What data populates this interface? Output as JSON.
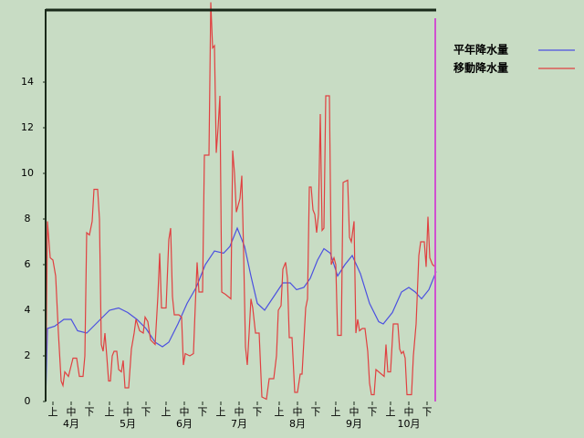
{
  "chart_data": {
    "type": "line",
    "xlim": [
      0,
      215
    ],
    "ylim": [
      0,
      17.2
    ],
    "yticks": [
      0,
      2,
      4,
      6,
      8,
      10,
      12,
      14
    ],
    "xticks": [
      {
        "value": 5,
        "label": "上"
      },
      {
        "value": 15,
        "label": "中"
      },
      {
        "value": 25,
        "label": "下"
      },
      {
        "value": 36,
        "label": "上"
      },
      {
        "value": 46,
        "label": "中"
      },
      {
        "value": 56,
        "label": "下"
      },
      {
        "value": 67,
        "label": "上"
      },
      {
        "value": 77,
        "label": "中"
      },
      {
        "value": 87,
        "label": "下"
      },
      {
        "value": 97,
        "label": "上"
      },
      {
        "value": 107,
        "label": "中"
      },
      {
        "value": 117,
        "label": "下"
      },
      {
        "value": 129,
        "label": "上"
      },
      {
        "value": 139,
        "label": "中"
      },
      {
        "value": 149,
        "label": "下"
      },
      {
        "value": 160,
        "label": "上"
      },
      {
        "value": 170,
        "label": "中"
      },
      {
        "value": 180,
        "label": "下"
      },
      {
        "value": 190,
        "label": "上"
      },
      {
        "value": 200,
        "label": "中"
      },
      {
        "value": 210,
        "label": "下"
      }
    ],
    "month_labels": [
      {
        "value": 15,
        "label": "4月"
      },
      {
        "value": 46,
        "label": "5月"
      },
      {
        "value": 77,
        "label": "6月"
      },
      {
        "value": 107,
        "label": "7月"
      },
      {
        "value": 139,
        "label": "8月"
      },
      {
        "value": 170,
        "label": "9月"
      },
      {
        "value": 200,
        "label": "10月"
      }
    ],
    "series": [
      {
        "name": "平年降水量",
        "color": "#4b50e0",
        "x": [
          1,
          2,
          6,
          11,
          15,
          18.5,
          23.5,
          28.5,
          36,
          41,
          46,
          51,
          56,
          61,
          65,
          68.5,
          73.5,
          78.5,
          83.5,
          88.5,
          93.5,
          98.5,
          102,
          106,
          110,
          113.5,
          117,
          121,
          126,
          131,
          135,
          138.5,
          142.5,
          146,
          150,
          153.5,
          157,
          161,
          165,
          169,
          173.5,
          178.5,
          183.5,
          186,
          191,
          196,
          200,
          203.5,
          207,
          211,
          215
        ],
        "values": [
          0,
          3.2,
          3.3,
          3.6,
          3.6,
          3.1,
          3.0,
          3.4,
          4.0,
          4.1,
          3.9,
          3.6,
          3.2,
          2.6,
          2.4,
          2.6,
          3.4,
          4.3,
          5.0,
          6.0,
          6.6,
          6.5,
          6.8,
          7.6,
          6.8,
          5.5,
          4.3,
          4.0,
          4.6,
          5.2,
          5.2,
          4.9,
          5.0,
          5.4,
          6.2,
          6.7,
          6.5,
          5.5,
          6.0,
          6.4,
          5.6,
          4.3,
          3.5,
          3.4,
          3.9,
          4.8,
          5.0,
          4.8,
          4.5,
          4.9,
          5.7
        ]
      },
      {
        "name": "移動降水量",
        "color": "#e04040",
        "x": [
          1,
          2,
          3.5,
          5,
          6.5,
          8,
          9.5,
          10.5,
          11.5,
          13.5,
          16,
          18,
          19.5,
          21.5,
          22.5,
          23.5,
          25,
          26.5,
          27.5,
          29.5,
          30.5,
          31.5,
          32.5,
          33.5,
          34.5,
          35.5,
          36.5,
          37.5,
          38.5,
          40,
          41,
          42.5,
          43.5,
          44.5,
          46.5,
          48,
          49.5,
          50.5,
          52.5,
          54.5,
          55.5,
          57,
          58.5,
          61,
          62.5,
          63.5,
          64.5,
          67,
          68.5,
          69.5,
          70.5,
          71.5,
          74,
          75.5,
          76.5,
          77.5,
          80,
          82,
          83,
          84,
          85,
          87,
          88,
          90.5,
          91.5,
          92.5,
          93.5,
          94.5,
          95.5,
          96.5,
          97.5,
          99.5,
          101,
          102.5,
          103.5,
          104.5,
          105.5,
          106.5,
          107.5,
          108.5,
          109.5,
          110.5,
          111.5,
          112.5,
          113.5,
          114.5,
          116,
          118,
          119.5,
          122,
          123.5,
          126,
          127.5,
          128.5,
          130,
          131,
          132.5,
          133.5,
          134.5,
          136,
          137.5,
          139,
          140.5,
          141.5,
          143.5,
          144.5,
          145.5,
          146.5,
          147.5,
          148.5,
          149.5,
          150.5,
          151.5,
          152.5,
          153.5,
          154.5,
          156.5,
          157.5,
          159,
          160,
          161,
          163,
          164,
          166.5,
          167.5,
          168.5,
          170,
          171,
          172,
          173,
          174.5,
          176,
          177.5,
          178.5,
          179.5,
          181,
          182,
          183.5,
          185,
          186.5,
          187.5,
          188.5,
          190,
          191.5,
          194,
          195,
          196,
          197,
          198,
          199,
          201.5,
          202.5,
          204,
          205.5,
          206.5,
          208.5,
          209.5,
          210.5,
          211.5,
          213,
          214.5
        ],
        "values": [
          0,
          7.9,
          6.3,
          6.2,
          5.5,
          3.0,
          0.9,
          0.7,
          1.3,
          1.1,
          1.9,
          1.9,
          1.1,
          1.1,
          2.0,
          7.4,
          7.3,
          7.9,
          9.3,
          9.3,
          8.0,
          2.5,
          2.2,
          3.0,
          2.0,
          0.9,
          0.9,
          2.0,
          2.2,
          2.2,
          1.4,
          1.3,
          1.8,
          0.6,
          0.6,
          2.3,
          3.0,
          3.6,
          3.1,
          3.0,
          3.7,
          3.5,
          2.7,
          2.5,
          4.6,
          6.5,
          4.1,
          4.1,
          7.1,
          7.6,
          4.6,
          3.8,
          3.8,
          3.7,
          1.6,
          2.1,
          2.0,
          2.1,
          4.2,
          6.1,
          4.8,
          4.8,
          10.8,
          10.8,
          17.5,
          15.5,
          15.6,
          10.9,
          12.0,
          13.4,
          4.8,
          4.7,
          4.6,
          4.5,
          11.0,
          10.0,
          8.3,
          8.6,
          8.9,
          9.9,
          6.5,
          2.4,
          1.6,
          3.0,
          4.5,
          4.1,
          3.0,
          3.0,
          0.2,
          0.1,
          1.0,
          1.0,
          2.0,
          4.0,
          4.2,
          5.8,
          6.1,
          5.4,
          2.8,
          2.8,
          0.4,
          0.4,
          1.2,
          1.2,
          4.1,
          4.5,
          9.4,
          9.4,
          8.4,
          8.2,
          7.4,
          8.2,
          12.6,
          7.5,
          7.6,
          13.4,
          13.4,
          6.0,
          6.3,
          6.0,
          2.9,
          2.9,
          9.6,
          9.7,
          7.2,
          7.0,
          7.9,
          3.0,
          3.6,
          3.1,
          3.2,
          3.2,
          2.2,
          0.8,
          0.3,
          0.3,
          1.4,
          1.3,
          1.2,
          1.1,
          2.5,
          1.3,
          1.3,
          3.4,
          3.4,
          2.3,
          2.1,
          2.2,
          1.9,
          0.3,
          0.3,
          2.0,
          3.4,
          6.4,
          7.0,
          7.0,
          5.9,
          8.1,
          6.3,
          6.0,
          5.9
        ]
      }
    ]
  }
}
